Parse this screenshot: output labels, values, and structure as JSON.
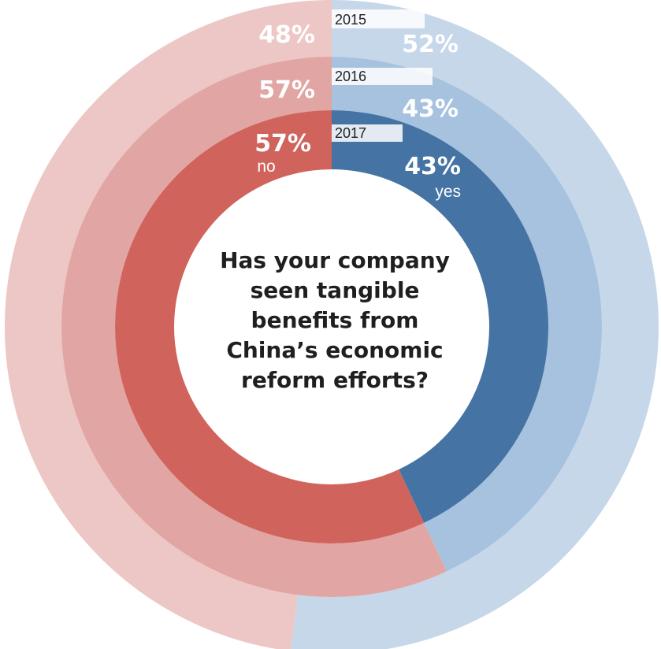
{
  "question": "Has your company\nseen tangible\nbenefits from\nChina’s economic\nreform efforts?",
  "chart_data": {
    "type": "pie",
    "variant": "concentric-donut",
    "title": "Has your company seen tangible benefits from China’s economic reform efforts?",
    "categories": [
      "yes",
      "no"
    ],
    "series": [
      {
        "name": "2015",
        "values": [
          52,
          48
        ],
        "colors": [
          "#c5d7e9",
          "#ecc7c5"
        ]
      },
      {
        "name": "2016",
        "values": [
          43,
          57
        ],
        "colors": [
          "#a6c2de",
          "#e1a5a3"
        ]
      },
      {
        "name": "2017",
        "values": [
          43,
          57
        ],
        "colors": [
          "#4573a4",
          "#d0645c"
        ]
      }
    ],
    "labels": {
      "2015": {
        "yes": "52%",
        "no": "48%"
      },
      "2016": {
        "yes": "43%",
        "no": "57%"
      },
      "2017": {
        "yes": "43%",
        "no": "57%",
        "yes_word": "yes",
        "no_word": "no"
      }
    },
    "legend": "none"
  }
}
